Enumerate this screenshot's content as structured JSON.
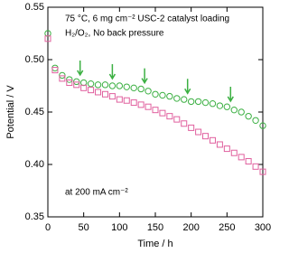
{
  "chart_data": {
    "type": "scatter",
    "xlabel": "Time / h",
    "ylabel": "Potential / V",
    "annotations": [
      "75 °C, 6 mg cm⁻² USC-2 catalyst loading",
      "H₂/O₂, No back pressure",
      "at 200 mA cm⁻²"
    ],
    "xlim": [
      0,
      300
    ],
    "xticks": [
      0,
      50,
      100,
      150,
      200,
      250,
      300
    ],
    "ylim": [
      0.35,
      0.55
    ],
    "yticks": [
      0.35,
      {
        "value": 0.4,
        "label": "0.40"
      },
      0.45,
      {
        "value": 0.5,
        "label": "0.50"
      },
      0.55
    ],
    "x": [
      0,
      10,
      20,
      30,
      40,
      50,
      60,
      70,
      80,
      90,
      100,
      110,
      120,
      130,
      140,
      150,
      160,
      170,
      180,
      190,
      200,
      210,
      220,
      230,
      240,
      250,
      260,
      270,
      280,
      290,
      300
    ],
    "series": [
      {
        "color": "#3cb043",
        "marker": "circle",
        "values": [
          0.525,
          0.492,
          0.485,
          0.481,
          0.479,
          0.478,
          0.477,
          0.476,
          0.476,
          0.475,
          0.475,
          0.474,
          0.473,
          0.472,
          0.47,
          0.467,
          0.466,
          0.465,
          0.463,
          0.462,
          0.46,
          0.46,
          0.459,
          0.458,
          0.456,
          0.455,
          0.452,
          0.45,
          0.446,
          0.442,
          0.437
        ]
      },
      {
        "color": "#e0609e",
        "marker": "square",
        "values": [
          0.52,
          0.49,
          0.482,
          0.478,
          0.476,
          0.473,
          0.471,
          0.469,
          0.467,
          0.465,
          0.462,
          0.461,
          0.459,
          0.457,
          0.455,
          0.452,
          0.449,
          0.446,
          0.443,
          0.439,
          0.435,
          0.431,
          0.427,
          0.423,
          0.419,
          0.415,
          0.411,
          0.407,
          0.403,
          0.398,
          0.393
        ]
      }
    ],
    "arrows": [
      45,
      90,
      135,
      195,
      255
    ]
  }
}
